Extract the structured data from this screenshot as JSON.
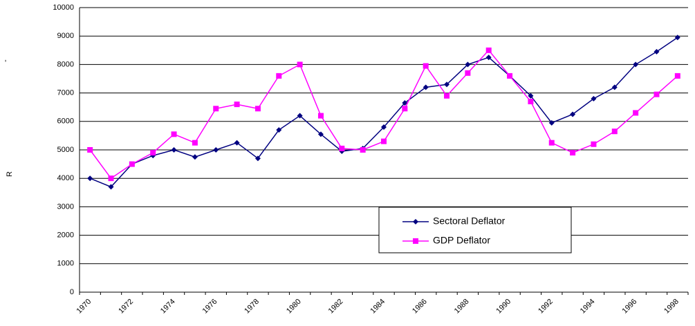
{
  "chart_data": {
    "type": "line",
    "y_label": "R",
    "annotation": "-",
    "categories": [
      "1970",
      null,
      "1972",
      null,
      "1974",
      null,
      "1976",
      null,
      "1978",
      null,
      "1980",
      null,
      "1982",
      null,
      "1984",
      null,
      "1986",
      null,
      "1988",
      null,
      "1990",
      null,
      "1992",
      null,
      "1994",
      null,
      "1996",
      null,
      "1998"
    ],
    "series": [
      {
        "name": "Sectoral Deflator",
        "color": "#000080",
        "marker": "diamond",
        "values": [
          4000,
          3700,
          4500,
          4800,
          5000,
          4750,
          5000,
          5250,
          4700,
          5700,
          6200,
          5550,
          4950,
          5050,
          5800,
          6650,
          7200,
          7300,
          8000,
          8250,
          7600,
          6900,
          5950,
          6250,
          6800,
          7200,
          8000,
          8450,
          8950
        ]
      },
      {
        "name": "GDP Deflator",
        "color": "#ff00ff",
        "marker": "square",
        "values": [
          5000,
          4000,
          4500,
          4900,
          5550,
          5250,
          6450,
          6600,
          6450,
          7600,
          8000,
          6200,
          5050,
          5000,
          5300,
          6450,
          7950,
          6900,
          7700,
          8500,
          7600,
          6700,
          5250,
          4900,
          5200,
          5650,
          6300,
          6950,
          7600
        ]
      }
    ],
    "ylim": [
      0,
      10000
    ],
    "yticks": [
      0,
      1000,
      2000,
      3000,
      4000,
      5000,
      6000,
      7000,
      8000,
      9000,
      10000
    ],
    "grid": true,
    "legend": "lower-right"
  }
}
